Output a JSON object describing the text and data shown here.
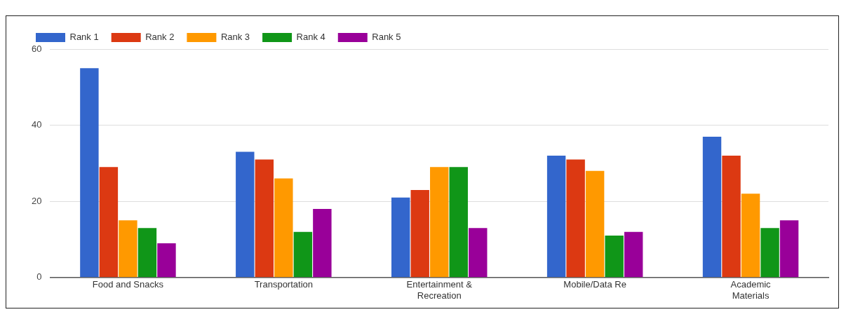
{
  "chart_data": {
    "type": "bar",
    "categories": [
      "Food and Snacks",
      "Transportation",
      "Entertainment & Recreation",
      "Mobile/Data Re",
      "Academic Materials"
    ],
    "series": [
      {
        "name": "Rank 1",
        "color": "#3366cc",
        "values": [
          55,
          33,
          21,
          32,
          37
        ]
      },
      {
        "name": "Rank 2",
        "color": "#dc3912",
        "values": [
          29,
          31,
          23,
          31,
          32
        ]
      },
      {
        "name": "Rank 3",
        "color": "#ff9900",
        "values": [
          15,
          26,
          29,
          28,
          22
        ]
      },
      {
        "name": "Rank 4",
        "color": "#109618",
        "values": [
          13,
          12,
          29,
          11,
          13
        ]
      },
      {
        "name": "Rank 5",
        "color": "#990099",
        "values": [
          9,
          18,
          13,
          12,
          15
        ]
      }
    ],
    "ylim": [
      0,
      60
    ],
    "yticks": [
      0,
      20,
      40,
      60
    ],
    "grid": "y",
    "legend": "top left"
  }
}
